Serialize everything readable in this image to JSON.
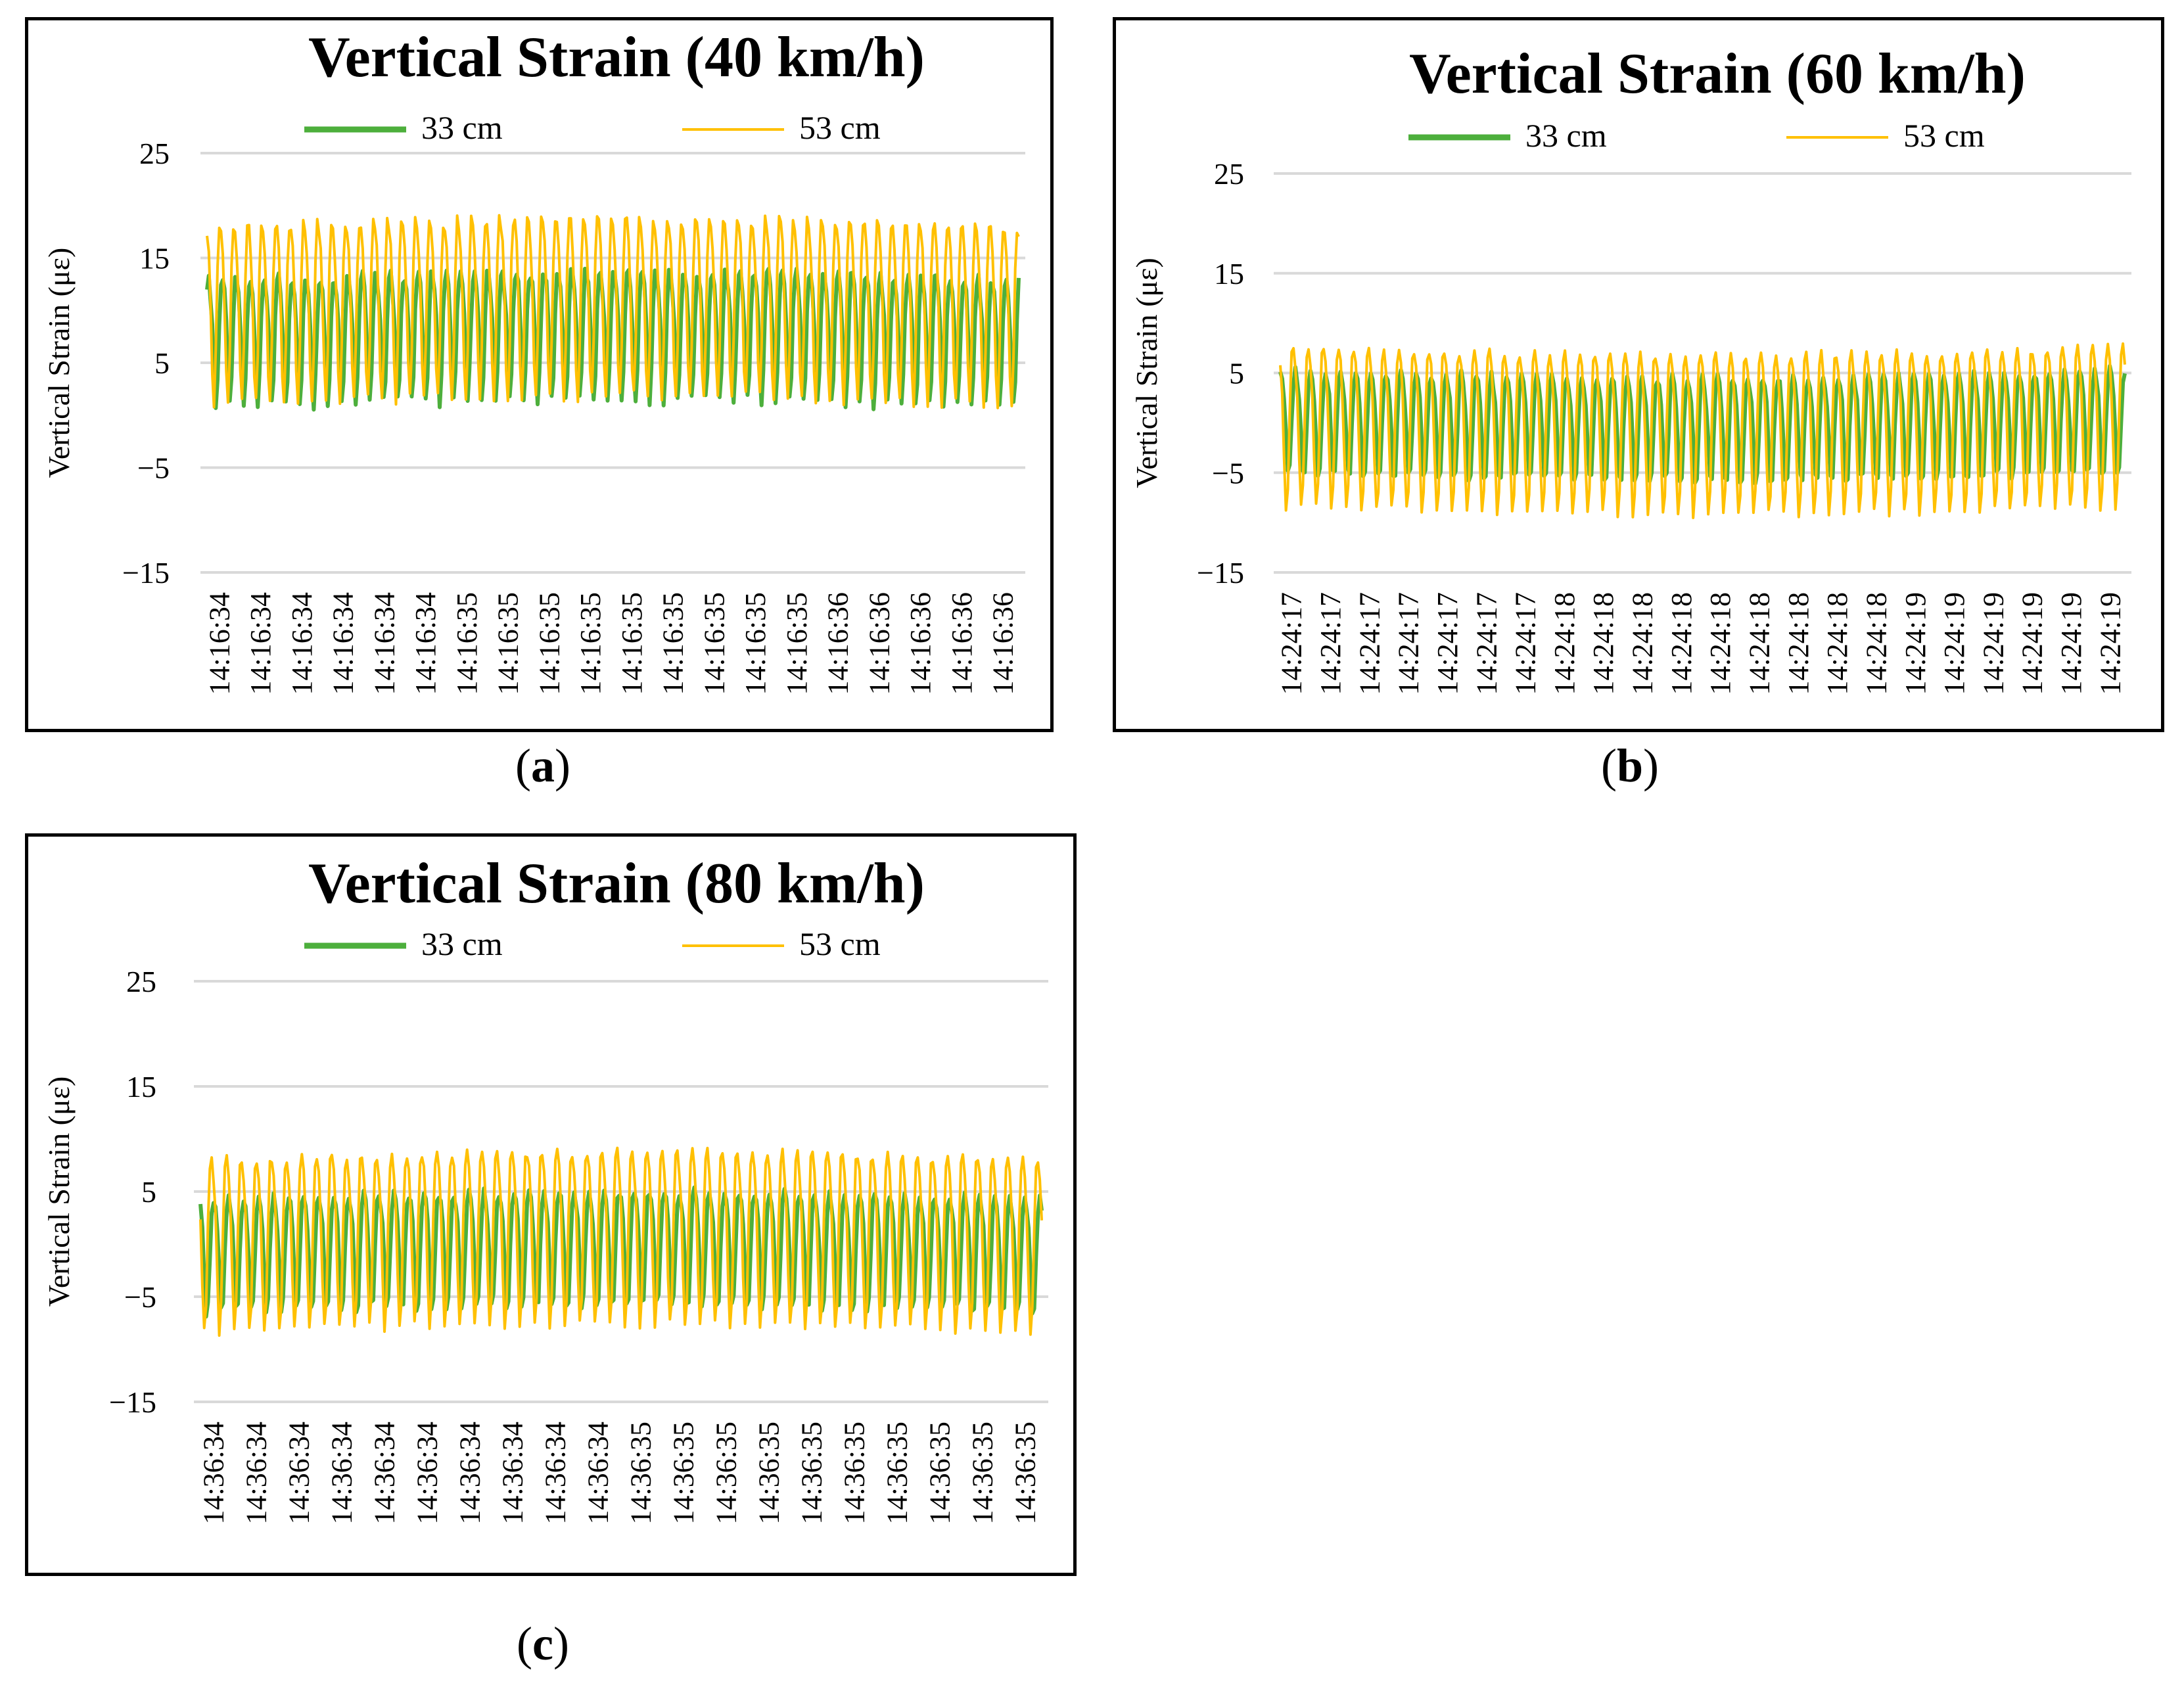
{
  "chart_data": [
    {
      "panel": "a",
      "type": "line",
      "title": "Vertical Strain (40 km/h)",
      "ylabel": "Vertical Strain (με)",
      "xlabel": "",
      "yticks": [
        25,
        15,
        5,
        -5,
        -15
      ],
      "ytick_labels": [
        "25",
        "15",
        "5",
        "−5",
        "−15"
      ],
      "ylim": [
        -15,
        25
      ],
      "xticks": [
        "14:16:34",
        "14:16:34",
        "14:16:34",
        "14:16:34",
        "14:16:34",
        "14:16:34",
        "14:16:35",
        "14:16:35",
        "14:16:35",
        "14:16:35",
        "14:16:35",
        "14:16:35",
        "14:16:35",
        "14:16:35",
        "14:16:35",
        "14:16:36",
        "14:16:36",
        "14:16:36",
        "14:16:36",
        "14:16:36"
      ],
      "series": [
        {
          "name": "33 cm",
          "color": "#4DAF3C",
          "cycles": 58,
          "low": 0,
          "high": 15.5
        },
        {
          "name": "53 cm",
          "color": "#FFC000",
          "cycles": 58,
          "low": 0,
          "high": 21.5
        }
      ],
      "legend": "top-center",
      "grid": true
    },
    {
      "panel": "b",
      "type": "line",
      "title": "Vertical Strain (60 km/h)",
      "ylabel": "Vertical Strain (με)",
      "xlabel": "",
      "yticks": [
        25,
        15,
        5,
        -5,
        -15
      ],
      "ytick_labels": [
        "25",
        "15",
        "5",
        "−5",
        "−15"
      ],
      "ylim": [
        -15,
        25
      ],
      "xticks": [
        "14:24:17",
        "14:24:17",
        "14:24:17",
        "14:24:17",
        "14:24:17",
        "14:24:17",
        "14:24:17",
        "14:24:18",
        "14:24:18",
        "14:24:18",
        "14:24:18",
        "14:24:18",
        "14:24:18",
        "14:24:18",
        "14:24:18",
        "14:24:18",
        "14:24:19",
        "14:24:19",
        "14:24:19",
        "14:24:19",
        "14:24:19",
        "14:24:19"
      ],
      "series": [
        {
          "name": "33 cm",
          "color": "#4DAF3C",
          "cycles": 56,
          "low": -6,
          "high": 7.5
        },
        {
          "name": "53 cm",
          "color": "#FFC000",
          "cycles": 56,
          "low": -9.5,
          "high": 11
        }
      ],
      "legend": "top-center",
      "grid": true
    },
    {
      "panel": "c",
      "type": "line",
      "title": "Vertical Strain (80 km/h)",
      "ylabel": "Vertical Strain (με)",
      "xlabel": "",
      "yticks": [
        25,
        15,
        5,
        -5,
        -15
      ],
      "ytick_labels": [
        "25",
        "15",
        "5",
        "−5",
        "−15"
      ],
      "ylim": [
        -15,
        25
      ],
      "xticks": [
        "14:36:34",
        "14:36:34",
        "14:36:34",
        "14:36:34",
        "14:36:34",
        "14:36:34",
        "14:36:34",
        "14:36:34",
        "14:36:34",
        "14:36:34",
        "14:36:35",
        "14:36:35",
        "14:36:35",
        "14:36:35",
        "14:36:35",
        "14:36:35",
        "14:36:35",
        "14:36:35",
        "14:36:35",
        "14:36:35"
      ],
      "series": [
        {
          "name": "33 cm",
          "color": "#4DAF3C",
          "cycles": 56,
          "low": -7.5,
          "high": 6.5
        },
        {
          "name": "53 cm",
          "color": "#FFC000",
          "cycles": 56,
          "low": -9.5,
          "high": 11.5
        }
      ],
      "legend": "top-center",
      "grid": true
    }
  ],
  "captions": [
    "a",
    "b",
    "c"
  ]
}
